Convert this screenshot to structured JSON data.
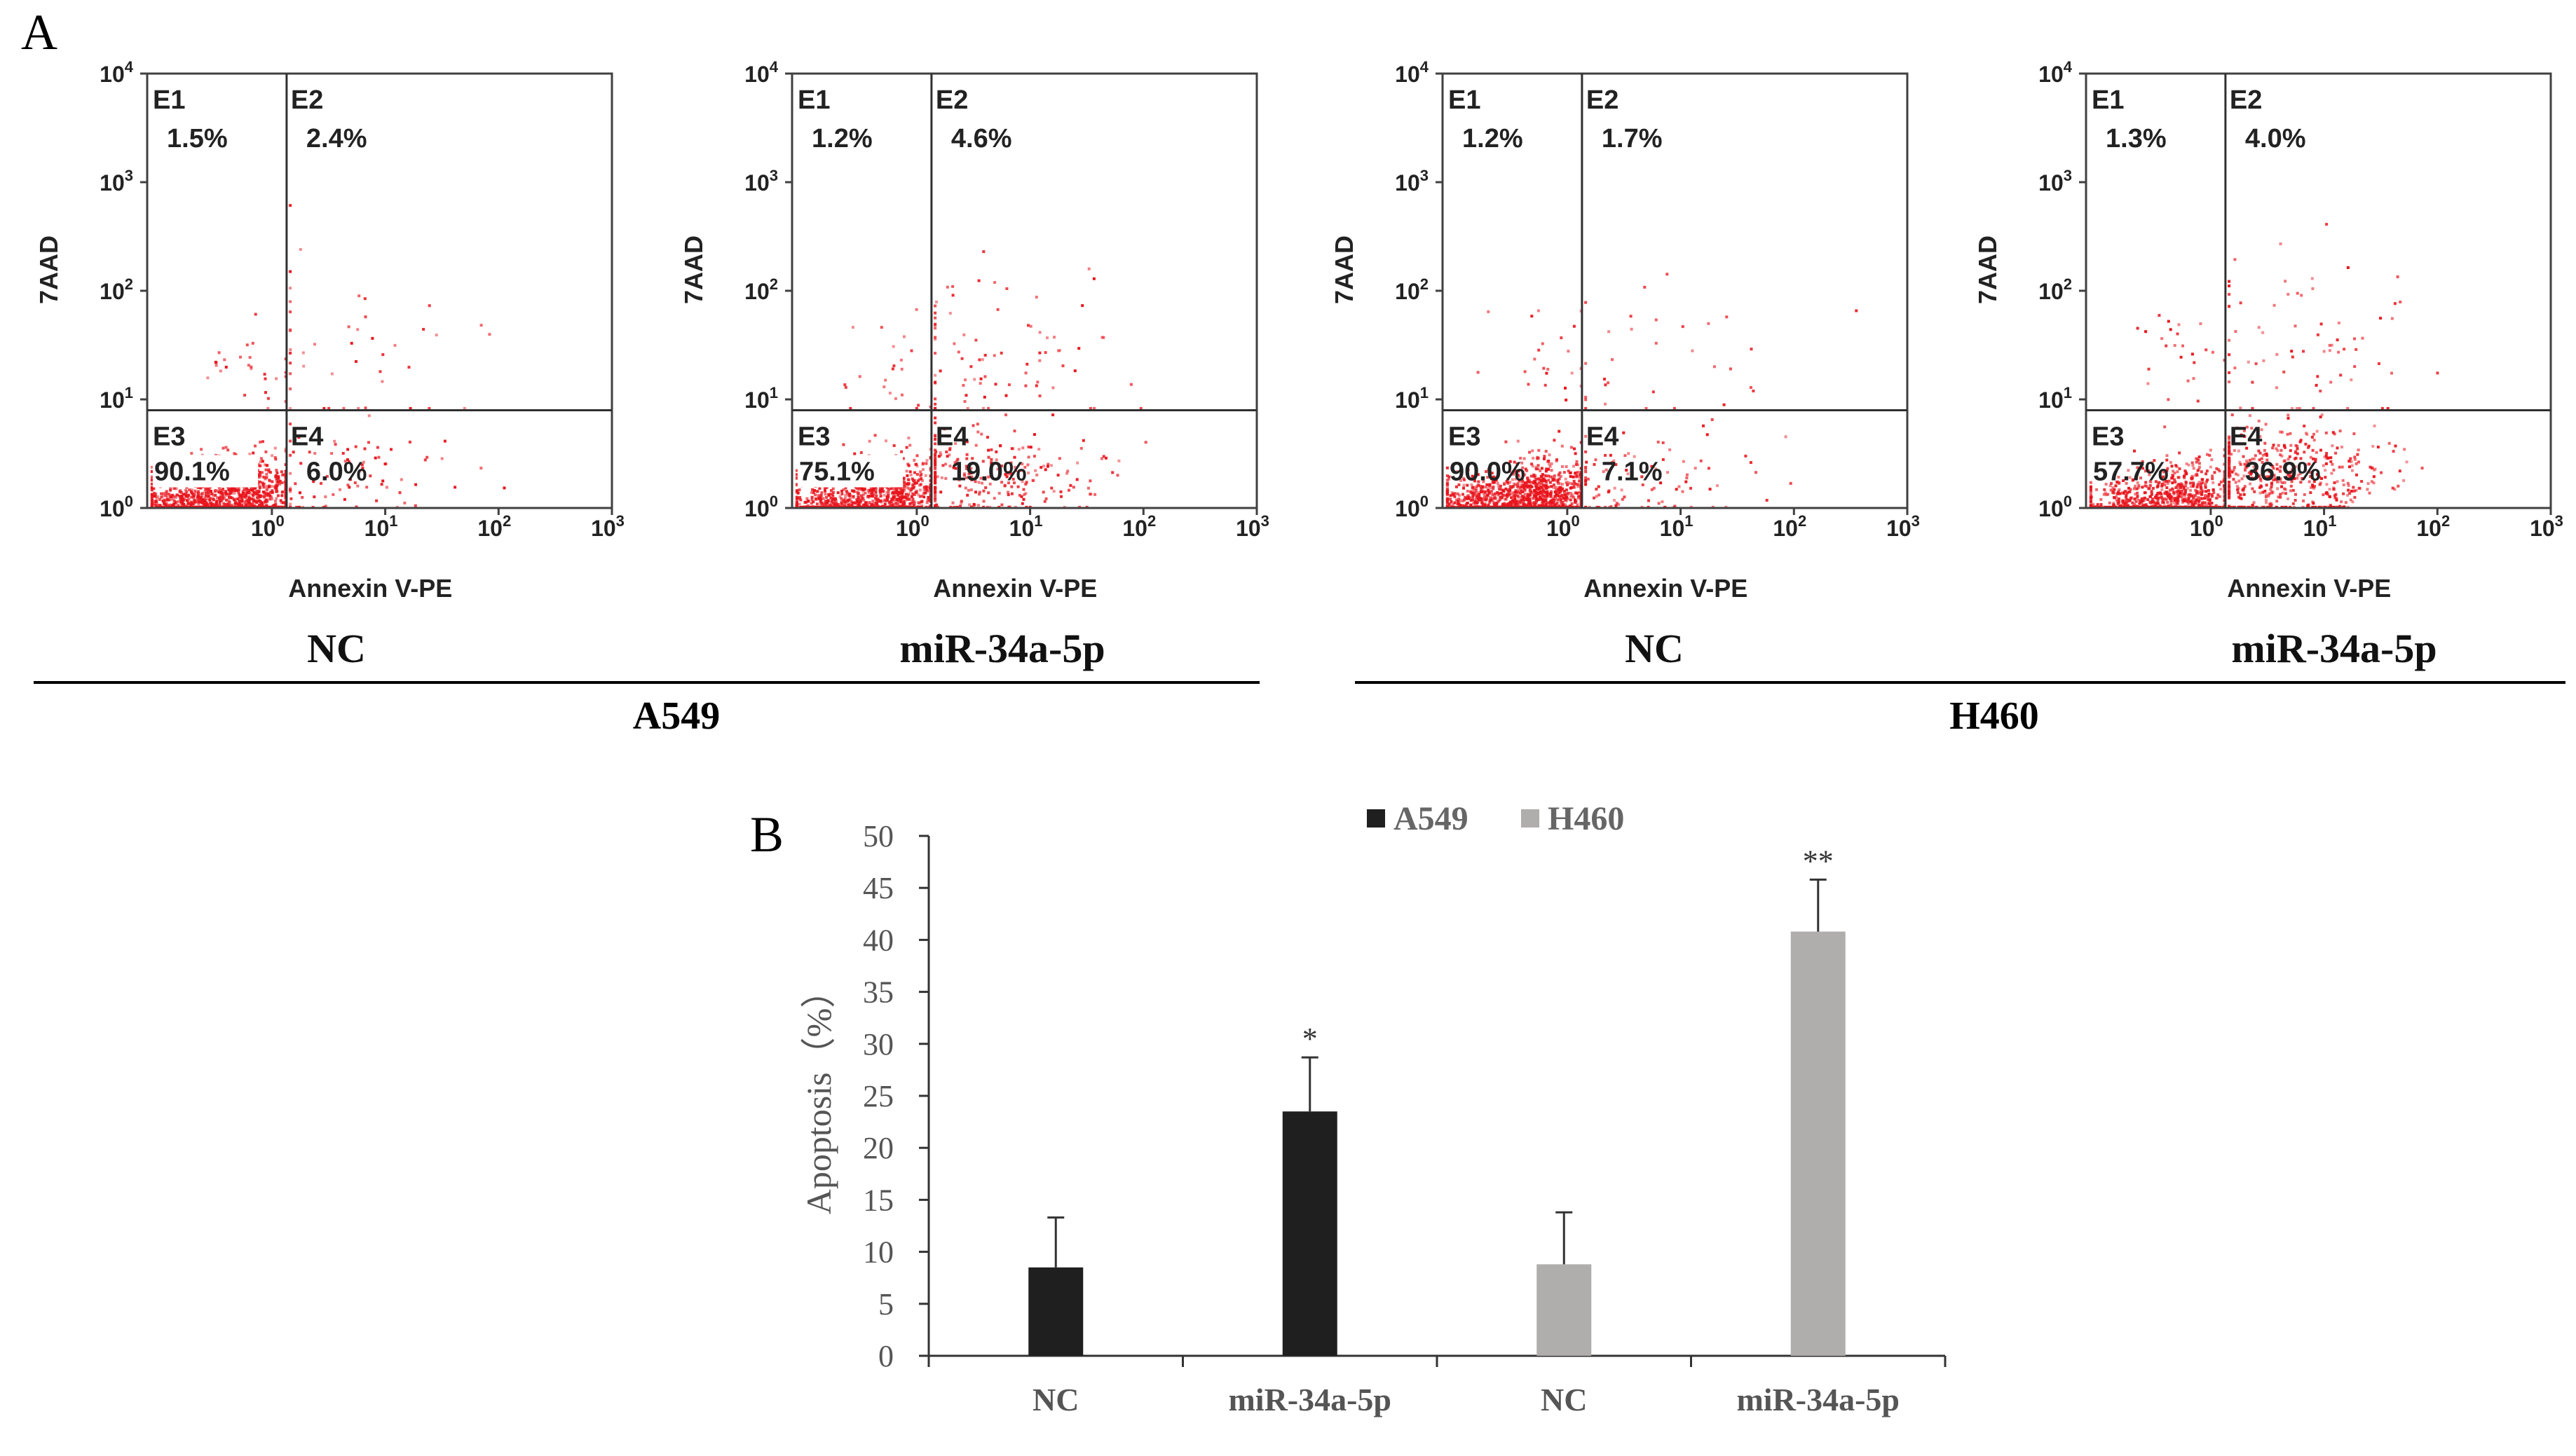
{
  "figure": {
    "panel_a_label": "A",
    "panel_b_label": "B",
    "group_labels": [
      "A549",
      "H460"
    ]
  },
  "chart_data": [
    {
      "type": "scatter",
      "subtype": "flow-cytometry-quadrant",
      "condition": "NC",
      "cell_line": "A549",
      "xlabel": "Annexin V-PE",
      "ylabel": "7AAD",
      "x_tick_base": "10",
      "x_tick_exponents": [
        "0",
        "1",
        "2",
        "3"
      ],
      "y_tick_base": "10",
      "y_tick_exponents": [
        "0",
        "1",
        "2",
        "3",
        "4"
      ],
      "x_gate_decade": 0.13,
      "y_gate_decade": 0.9,
      "quadrants": [
        {
          "name": "E1",
          "value": "1.5%"
        },
        {
          "name": "E2",
          "value": "2.4%"
        },
        {
          "name": "E3",
          "value": "90.1%"
        },
        {
          "name": "E4",
          "value": "6.0%"
        }
      ],
      "e3_value_boxed": true
    },
    {
      "type": "scatter",
      "subtype": "flow-cytometry-quadrant",
      "condition": "miR-34a-5p",
      "cell_line": "A549",
      "xlabel": "Annexin V-PE",
      "ylabel": "7AAD",
      "x_tick_base": "10",
      "x_tick_exponents": [
        "0",
        "1",
        "2",
        "3"
      ],
      "y_tick_base": "10",
      "y_tick_exponents": [
        "0",
        "1",
        "2",
        "3",
        "4"
      ],
      "x_gate_decade": 0.13,
      "y_gate_decade": 0.9,
      "quadrants": [
        {
          "name": "E1",
          "value": "1.2%"
        },
        {
          "name": "E2",
          "value": "4.6%"
        },
        {
          "name": "E3",
          "value": "75.1%"
        },
        {
          "name": "E4",
          "value": "19.0%"
        }
      ],
      "e3_value_boxed": true
    },
    {
      "type": "scatter",
      "subtype": "flow-cytometry-quadrant",
      "condition": "NC",
      "cell_line": "H460",
      "xlabel": "Annexin V-PE",
      "ylabel": "7AAD",
      "x_tick_base": "10",
      "x_tick_exponents": [
        "0",
        "1",
        "2",
        "3"
      ],
      "y_tick_base": "10",
      "y_tick_exponents": [
        "0",
        "1",
        "2",
        "3",
        "4"
      ],
      "x_gate_decade": 0.13,
      "y_gate_decade": 0.9,
      "quadrants": [
        {
          "name": "E1",
          "value": "1.2%"
        },
        {
          "name": "E2",
          "value": "1.7%"
        },
        {
          "name": "E3",
          "value": "90.0%"
        },
        {
          "name": "E4",
          "value": "7.1%"
        }
      ],
      "e3_value_boxed": false
    },
    {
      "type": "scatter",
      "subtype": "flow-cytometry-quadrant",
      "condition": "miR-34a-5p",
      "cell_line": "H460",
      "xlabel": "Annexin V-PE",
      "ylabel": "7AAD",
      "x_tick_base": "10",
      "x_tick_exponents": [
        "0",
        "1",
        "2",
        "3"
      ],
      "y_tick_base": "10",
      "y_tick_exponents": [
        "0",
        "1",
        "2",
        "3",
        "4"
      ],
      "x_gate_decade": 0.13,
      "y_gate_decade": 0.9,
      "quadrants": [
        {
          "name": "E1",
          "value": "1.3%"
        },
        {
          "name": "E2",
          "value": "4.0%"
        },
        {
          "name": "E3",
          "value": "57.7%"
        },
        {
          "name": "E4",
          "value": "36.9%"
        }
      ],
      "e3_value_boxed": false
    },
    {
      "type": "bar",
      "title": "",
      "xlabel": "",
      "ylabel": "Apoptosis（%）",
      "ylim": [
        0,
        50
      ],
      "y_ticks": [
        0,
        5,
        10,
        15,
        20,
        25,
        30,
        35,
        40,
        45,
        50
      ],
      "categories": [
        "NC",
        "miR-34a-5p",
        "NC",
        "miR-34a-5p"
      ],
      "legend": [
        {
          "name": "A549",
          "color": "#1f1f1f"
        },
        {
          "name": "H460",
          "color": "#b0adad"
        }
      ],
      "bars": [
        {
          "category": "NC",
          "series": "A549",
          "value": 8.5,
          "error": 4.8,
          "annotation": ""
        },
        {
          "category": "miR-34a-5p",
          "series": "A549",
          "value": 23.5,
          "error": 5.2,
          "annotation": "*"
        },
        {
          "category": "NC",
          "series": "H460",
          "value": 8.8,
          "error": 5.0,
          "annotation": ""
        },
        {
          "category": "miR-34a-5p",
          "series": "H460",
          "value": 40.8,
          "error": 5.0,
          "annotation": "**"
        }
      ]
    }
  ]
}
